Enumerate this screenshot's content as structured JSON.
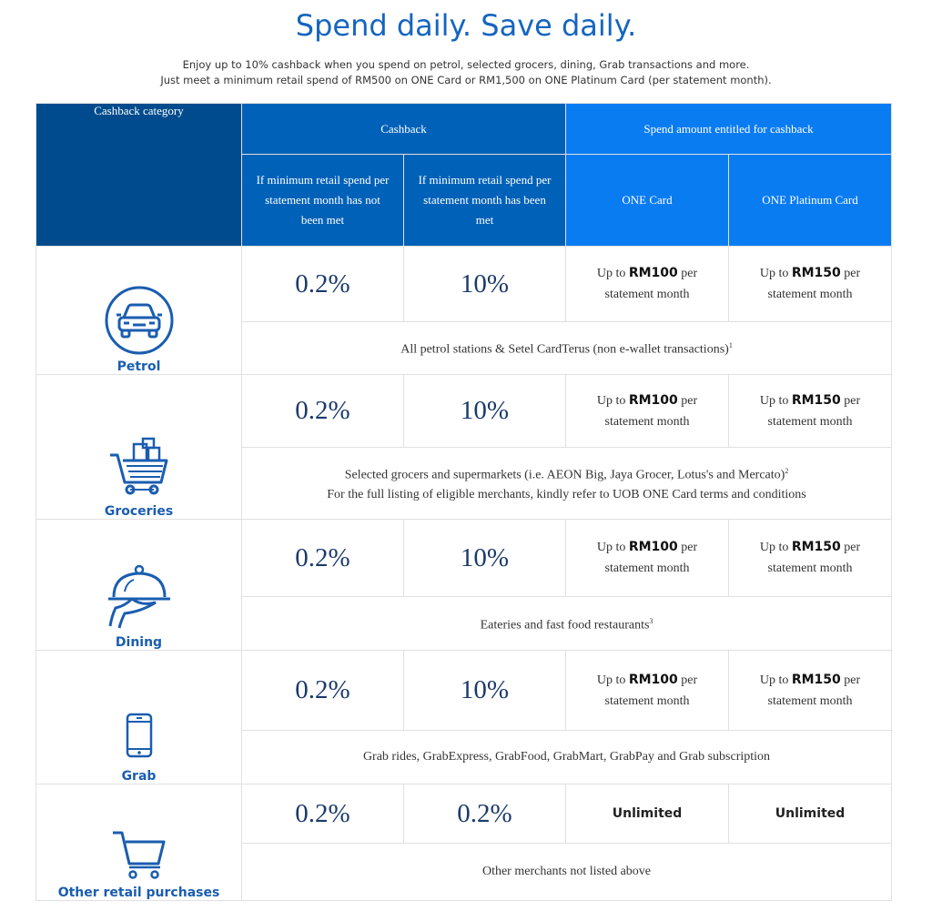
{
  "header": {
    "title": "Spend daily. Save daily.",
    "intro_line1": "Enjoy up to 10% cashback when you spend on petrol, selected grocers, dining, Grab transactions and more.",
    "intro_line2": "Just meet a minimum retail spend of RM500 on ONE Card or RM1,500 on ONE Platinum Card (per statement month)."
  },
  "table": {
    "category_header": "Cashback category",
    "cashback_header": "Cashback",
    "spend_header": "Spend amount entitled for cashback",
    "col_not_met": "If minimum retail spend per statement month has not been met",
    "col_met": "If minimum retail spend per statement month has been met",
    "col_one": "ONE Card",
    "col_platinum": "ONE Platinum Card"
  },
  "spend_text": {
    "up_to": "Up to",
    "one_amount": "RM100",
    "platinum_amount": "RM150",
    "per": "per",
    "statement_month": "statement month",
    "unlimited": "Unlimited"
  },
  "rows": [
    {
      "label": "Petrol",
      "not_met": "0.2%",
      "met": "10%",
      "note1": "All petrol stations & Setel CardTerus (non e-wallet transactions)",
      "sup1": "1"
    },
    {
      "label": "Groceries",
      "not_met": "0.2%",
      "met": "10%",
      "note1": "Selected grocers and supermarkets (i.e. AEON Big, Jaya Grocer, Lotus's and Mercato)",
      "sup1": "2",
      "note2": "For the full listing of eligible merchants, kindly refer to UOB ONE Card terms and conditions"
    },
    {
      "label": "Dining",
      "not_met": "0.2%",
      "met": "10%",
      "note1": "Eateries and fast food restaurants",
      "sup1": "3"
    },
    {
      "label": "Grab",
      "not_met": "0.2%",
      "met": "10%",
      "note1": "Grab rides, GrabExpress, GrabFood, GrabMart, GrabPay and Grab subscription"
    },
    {
      "label": "Other retail purchases",
      "not_met": "0.2%",
      "met": "0.2%",
      "note1": "Other merchants not listed above"
    }
  ],
  "colors": {
    "title": "#1565c0",
    "category_header_bg": "#004b8d",
    "cashback_header_bg": "#0061b8",
    "spend_header_bg": "#0a7cf2",
    "icon": "#1a5db0"
  }
}
